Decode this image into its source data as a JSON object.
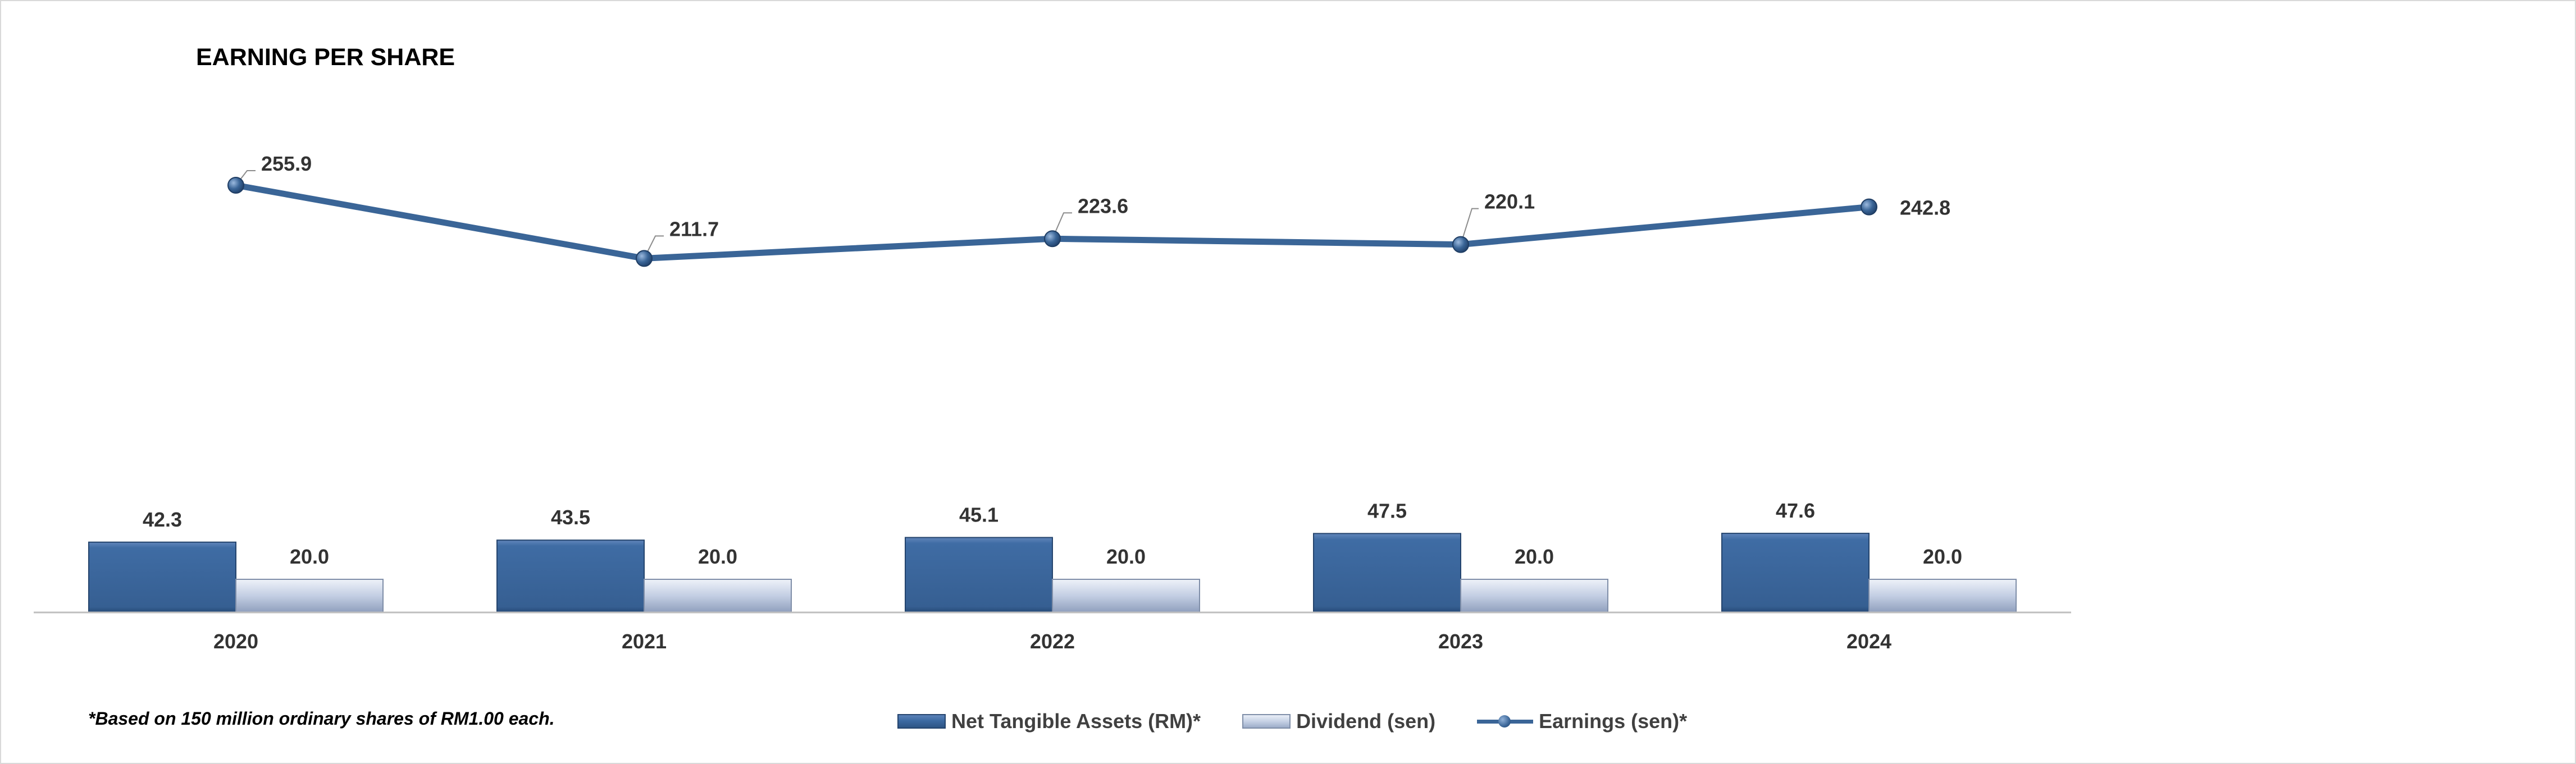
{
  "chart_data": {
    "type": "bar+line",
    "title": "EARNING PER SHARE",
    "categories": [
      "2020",
      "2021",
      "2022",
      "2023",
      "2024"
    ],
    "series": [
      {
        "name": "Net Tangible Assets (RM)*",
        "type": "bar",
        "color": "#3c6aa2",
        "values": [
          42.3,
          43.5,
          45.1,
          47.5,
          47.6
        ],
        "labels": [
          "42.3",
          "43.5",
          "45.1",
          "47.5",
          "47.6"
        ]
      },
      {
        "name": "Dividend (sen)",
        "type": "bar",
        "color": "#c6d1e5",
        "values": [
          20.0,
          20.0,
          20.0,
          20.0,
          20.0
        ],
        "labels": [
          "20.0",
          "20.0",
          "20.0",
          "20.0",
          "20.0"
        ]
      },
      {
        "name": "Earnings (sen)*",
        "type": "line",
        "color": "#3a6597",
        "values": [
          255.9,
          211.7,
          223.6,
          220.1,
          242.8
        ],
        "labels": [
          "255.9",
          "211.7",
          "223.6",
          "220.1",
          "242.8"
        ]
      }
    ],
    "legend_position": "bottom",
    "grid": false
  },
  "footnote": "*Based on 150 million ordinary shares of RM1.00 each."
}
